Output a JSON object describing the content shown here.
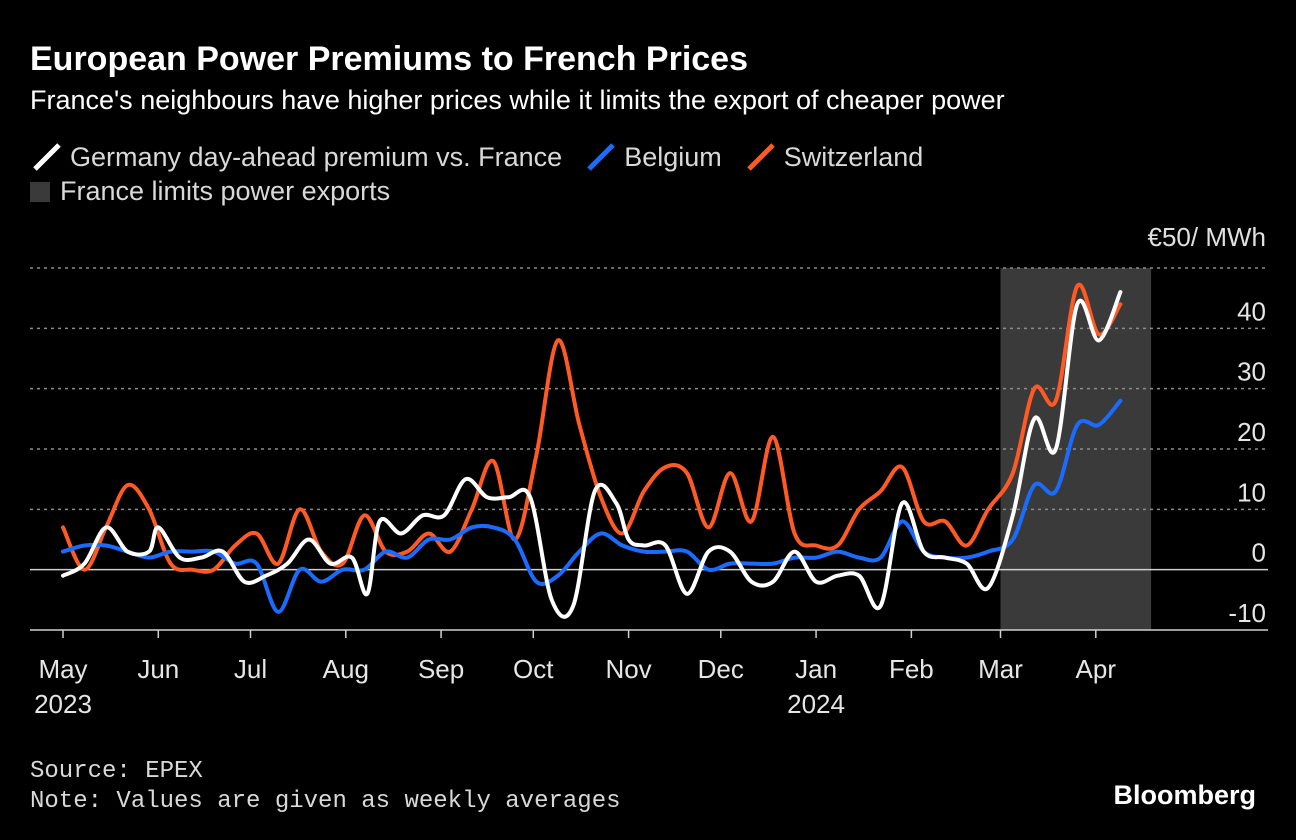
{
  "title": "European Power Premiums to French Prices",
  "subtitle": "France's neighbours have higher prices while it limits the export of cheaper power",
  "legend": {
    "germany": "Germany day-ahead premium vs. France",
    "belgium": "Belgium",
    "switzerland": "Switzerland",
    "shade": "France limits power exports"
  },
  "unit_label": "€50/ MWh",
  "source": "Source: EPEX",
  "note": "Note: Values are given as weekly averages",
  "brand": "Bloomberg",
  "colors": {
    "germany": "#ffffff",
    "belgium": "#1a6cff",
    "switzerland": "#ff5a24",
    "shade": "#3a3a3a",
    "grid": "#8c8c8c"
  },
  "chart_data": {
    "type": "line",
    "ylim": [
      -10,
      50
    ],
    "yticks": [
      -10,
      0,
      10,
      20,
      30,
      40
    ],
    "ytick_label_override": {
      "50": "€50/ MWh"
    },
    "grid": true,
    "x_start": "2023-05-01",
    "x_end": "2024-05-01",
    "xtick_labels": [
      {
        "date": "2023-05-01",
        "label": "May",
        "sub": "2023"
      },
      {
        "date": "2023-06-01",
        "label": "Jun"
      },
      {
        "date": "2023-07-01",
        "label": "Jul"
      },
      {
        "date": "2023-08-01",
        "label": "Aug"
      },
      {
        "date": "2023-09-01",
        "label": "Sep"
      },
      {
        "date": "2023-10-01",
        "label": "Oct"
      },
      {
        "date": "2023-11-01",
        "label": "Nov"
      },
      {
        "date": "2023-12-01",
        "label": "Dec"
      },
      {
        "date": "2024-01-01",
        "label": "Jan",
        "sub": "2024"
      },
      {
        "date": "2024-02-01",
        "label": "Feb"
      },
      {
        "date": "2024-03-01",
        "label": "Mar"
      },
      {
        "date": "2024-04-01",
        "label": "Apr"
      }
    ],
    "shaded_range": {
      "start": "2024-03-01",
      "end": "2024-04-19"
    },
    "series": [
      {
        "name": "Germany day-ahead premium vs. France",
        "key": "germany",
        "points": [
          [
            "2023-05-01",
            -1
          ],
          [
            "2023-05-08",
            1
          ],
          [
            "2023-05-15",
            7
          ],
          [
            "2023-05-22",
            3
          ],
          [
            "2023-05-29",
            3
          ],
          [
            "2023-06-01",
            7
          ],
          [
            "2023-06-08",
            2
          ],
          [
            "2023-06-15",
            2
          ],
          [
            "2023-06-22",
            3
          ],
          [
            "2023-06-29",
            -2
          ],
          [
            "2023-07-06",
            -1
          ],
          [
            "2023-07-13",
            1
          ],
          [
            "2023-07-20",
            5
          ],
          [
            "2023-07-27",
            1
          ],
          [
            "2023-08-03",
            2
          ],
          [
            "2023-08-08",
            -4
          ],
          [
            "2023-08-12",
            8
          ],
          [
            "2023-08-19",
            6
          ],
          [
            "2023-08-26",
            9
          ],
          [
            "2023-09-02",
            9
          ],
          [
            "2023-09-09",
            15
          ],
          [
            "2023-09-16",
            12
          ],
          [
            "2023-09-23",
            12
          ],
          [
            "2023-09-30",
            12
          ],
          [
            "2023-10-07",
            -5
          ],
          [
            "2023-10-14",
            -6
          ],
          [
            "2023-10-21",
            13
          ],
          [
            "2023-10-28",
            11
          ],
          [
            "2023-11-01",
            5
          ],
          [
            "2023-11-06",
            4
          ],
          [
            "2023-11-13",
            4
          ],
          [
            "2023-11-20",
            -4
          ],
          [
            "2023-11-27",
            3
          ],
          [
            "2023-12-04",
            3
          ],
          [
            "2023-12-11",
            -2
          ],
          [
            "2023-12-18",
            -2
          ],
          [
            "2023-12-25",
            3
          ],
          [
            "2024-01-01",
            -2
          ],
          [
            "2024-01-08",
            -1
          ],
          [
            "2024-01-15",
            -1
          ],
          [
            "2024-01-22",
            -6
          ],
          [
            "2024-01-29",
            11
          ],
          [
            "2024-02-05",
            3
          ],
          [
            "2024-02-12",
            2
          ],
          [
            "2024-02-19",
            1
          ],
          [
            "2024-02-26",
            -3
          ],
          [
            "2024-03-05",
            9
          ],
          [
            "2024-03-12",
            25
          ],
          [
            "2024-03-19",
            20
          ],
          [
            "2024-03-26",
            44
          ],
          [
            "2024-04-02",
            38
          ],
          [
            "2024-04-09",
            46
          ]
        ]
      },
      {
        "name": "Belgium",
        "key": "belgium",
        "points": [
          [
            "2023-05-01",
            3
          ],
          [
            "2023-05-08",
            4
          ],
          [
            "2023-05-15",
            4
          ],
          [
            "2023-05-22",
            3
          ],
          [
            "2023-05-29",
            2
          ],
          [
            "2023-06-05",
            3
          ],
          [
            "2023-06-12",
            3
          ],
          [
            "2023-06-19",
            3
          ],
          [
            "2023-06-26",
            1
          ],
          [
            "2023-07-03",
            1
          ],
          [
            "2023-07-10",
            -7
          ],
          [
            "2023-07-17",
            0
          ],
          [
            "2023-07-24",
            -2
          ],
          [
            "2023-07-31",
            0
          ],
          [
            "2023-08-07",
            0
          ],
          [
            "2023-08-14",
            3
          ],
          [
            "2023-08-21",
            2
          ],
          [
            "2023-08-28",
            5
          ],
          [
            "2023-09-04",
            5
          ],
          [
            "2023-09-11",
            7
          ],
          [
            "2023-09-18",
            7
          ],
          [
            "2023-09-25",
            5
          ],
          [
            "2023-10-02",
            -2
          ],
          [
            "2023-10-09",
            -1
          ],
          [
            "2023-10-16",
            3
          ],
          [
            "2023-10-23",
            6
          ],
          [
            "2023-10-30",
            4
          ],
          [
            "2023-11-06",
            3
          ],
          [
            "2023-11-13",
            3
          ],
          [
            "2023-11-20",
            3
          ],
          [
            "2023-11-27",
            0
          ],
          [
            "2023-12-04",
            1
          ],
          [
            "2023-12-11",
            1
          ],
          [
            "2023-12-18",
            1
          ],
          [
            "2023-12-25",
            2
          ],
          [
            "2024-01-01",
            2
          ],
          [
            "2024-01-08",
            3
          ],
          [
            "2024-01-15",
            2
          ],
          [
            "2024-01-22",
            2
          ],
          [
            "2024-01-29",
            8
          ],
          [
            "2024-02-05",
            3
          ],
          [
            "2024-02-12",
            2
          ],
          [
            "2024-02-19",
            2
          ],
          [
            "2024-02-26",
            3
          ],
          [
            "2024-03-05",
            5
          ],
          [
            "2024-03-12",
            14
          ],
          [
            "2024-03-19",
            13
          ],
          [
            "2024-03-26",
            24
          ],
          [
            "2024-04-02",
            24
          ],
          [
            "2024-04-09",
            28
          ]
        ]
      },
      {
        "name": "Switzerland",
        "key": "switzerland",
        "points": [
          [
            "2023-05-01",
            7
          ],
          [
            "2023-05-08",
            0
          ],
          [
            "2023-05-15",
            7
          ],
          [
            "2023-05-22",
            14
          ],
          [
            "2023-05-29",
            10
          ],
          [
            "2023-06-05",
            1
          ],
          [
            "2023-06-12",
            0
          ],
          [
            "2023-06-19",
            0
          ],
          [
            "2023-06-26",
            4
          ],
          [
            "2023-07-03",
            6
          ],
          [
            "2023-07-10",
            1
          ],
          [
            "2023-07-17",
            10
          ],
          [
            "2023-07-24",
            3
          ],
          [
            "2023-07-31",
            1
          ],
          [
            "2023-08-07",
            9
          ],
          [
            "2023-08-14",
            3
          ],
          [
            "2023-08-21",
            3
          ],
          [
            "2023-08-28",
            6
          ],
          [
            "2023-09-04",
            3
          ],
          [
            "2023-09-11",
            10
          ],
          [
            "2023-09-18",
            18
          ],
          [
            "2023-09-25",
            5
          ],
          [
            "2023-10-02",
            19
          ],
          [
            "2023-10-09",
            38
          ],
          [
            "2023-10-16",
            24
          ],
          [
            "2023-10-23",
            12
          ],
          [
            "2023-10-30",
            6
          ],
          [
            "2023-11-06",
            13
          ],
          [
            "2023-11-13",
            17
          ],
          [
            "2023-11-20",
            16
          ],
          [
            "2023-11-27",
            7
          ],
          [
            "2023-12-04",
            16
          ],
          [
            "2023-12-11",
            8
          ],
          [
            "2023-12-18",
            22
          ],
          [
            "2023-12-25",
            6
          ],
          [
            "2024-01-01",
            4
          ],
          [
            "2024-01-08",
            4
          ],
          [
            "2024-01-15",
            10
          ],
          [
            "2024-01-22",
            13
          ],
          [
            "2024-01-29",
            17
          ],
          [
            "2024-02-05",
            8
          ],
          [
            "2024-02-12",
            8
          ],
          [
            "2024-02-19",
            4
          ],
          [
            "2024-02-26",
            10
          ],
          [
            "2024-03-05",
            16
          ],
          [
            "2024-03-12",
            30
          ],
          [
            "2024-03-19",
            28
          ],
          [
            "2024-03-26",
            47
          ],
          [
            "2024-04-02",
            39
          ],
          [
            "2024-04-09",
            44
          ]
        ]
      }
    ]
  }
}
